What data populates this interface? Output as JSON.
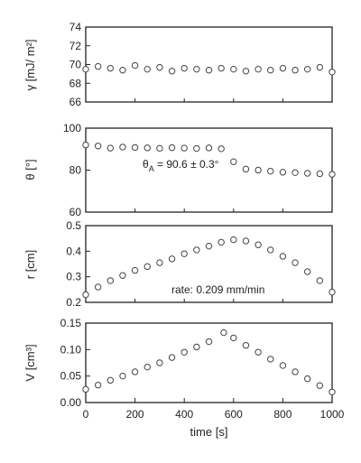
{
  "chart_data": [
    {
      "type": "scatter",
      "ylabel": "γ [mJ/ m²]",
      "ylim": [
        66,
        74
      ],
      "yticks": [
        "66",
        "68",
        "70",
        "72",
        "74"
      ],
      "xlim": [
        0,
        1000
      ],
      "series": [
        {
          "x": [
            0,
            50,
            100,
            150,
            200,
            250,
            300,
            350,
            400,
            450,
            500,
            550,
            600,
            650,
            700,
            750,
            800,
            850,
            900,
            950,
            1000
          ],
          "y": [
            69.5,
            69.8,
            69.6,
            69.4,
            69.9,
            69.5,
            69.7,
            69.3,
            69.6,
            69.5,
            69.4,
            69.6,
            69.5,
            69.3,
            69.5,
            69.4,
            69.6,
            69.4,
            69.5,
            69.7,
            69.2
          ]
        }
      ],
      "annotations": []
    },
    {
      "type": "scatter",
      "ylabel": "θ [°]",
      "ylim": [
        60,
        100
      ],
      "yticks": [
        "60",
        "80",
        "100"
      ],
      "xlim": [
        0,
        1000
      ],
      "series": [
        {
          "x": [
            0,
            50,
            100,
            150,
            200,
            250,
            300,
            350,
            400,
            450,
            500,
            550,
            600,
            650,
            700,
            750,
            800,
            850,
            900,
            950,
            1000
          ],
          "y": [
            92,
            91.5,
            90.5,
            91,
            90.8,
            90.6,
            90.4,
            90.7,
            90.5,
            90.3,
            90.6,
            90.2,
            84,
            80.5,
            80,
            79.5,
            79,
            78.8,
            78.5,
            78.3,
            78
          ]
        }
      ],
      "annotations": [
        {
          "text": "θ",
          "sub": "A",
          "rest": " = 90.6 ± 0.3°"
        }
      ]
    },
    {
      "type": "scatter",
      "ylabel": "r [cm]",
      "ylim": [
        0.2,
        0.5
      ],
      "yticks": [
        "0.2",
        "0.3",
        "0.4",
        "0.5"
      ],
      "xlim": [
        0,
        1000
      ],
      "series": [
        {
          "x": [
            0,
            50,
            100,
            150,
            200,
            250,
            300,
            350,
            400,
            450,
            500,
            550,
            600,
            650,
            700,
            750,
            800,
            850,
            900,
            950,
            1000
          ],
          "y": [
            0.23,
            0.26,
            0.285,
            0.305,
            0.325,
            0.34,
            0.355,
            0.37,
            0.39,
            0.405,
            0.42,
            0.435,
            0.445,
            0.44,
            0.425,
            0.405,
            0.38,
            0.355,
            0.32,
            0.285,
            0.24
          ]
        }
      ],
      "annotations": [
        {
          "text": "rate: 0.209 mm/min"
        }
      ]
    },
    {
      "type": "scatter",
      "ylabel": "V [cm³]",
      "xlabel": "time [s]",
      "ylim": [
        0,
        0.15
      ],
      "yticks": [
        "0.00",
        "0.05",
        "0.10",
        "0.15"
      ],
      "xlim": [
        0,
        1000
      ],
      "xticks": [
        "0",
        "200",
        "400",
        "600",
        "800",
        "1000"
      ],
      "series": [
        {
          "x": [
            0,
            50,
            100,
            150,
            200,
            250,
            300,
            350,
            400,
            450,
            500,
            560,
            600,
            650,
            700,
            750,
            800,
            850,
            900,
            950,
            1000
          ],
          "y": [
            0.025,
            0.033,
            0.042,
            0.05,
            0.058,
            0.067,
            0.075,
            0.085,
            0.095,
            0.105,
            0.115,
            0.132,
            0.122,
            0.108,
            0.095,
            0.082,
            0.07,
            0.058,
            0.045,
            0.032,
            0.02
          ]
        }
      ],
      "annotations": []
    }
  ]
}
